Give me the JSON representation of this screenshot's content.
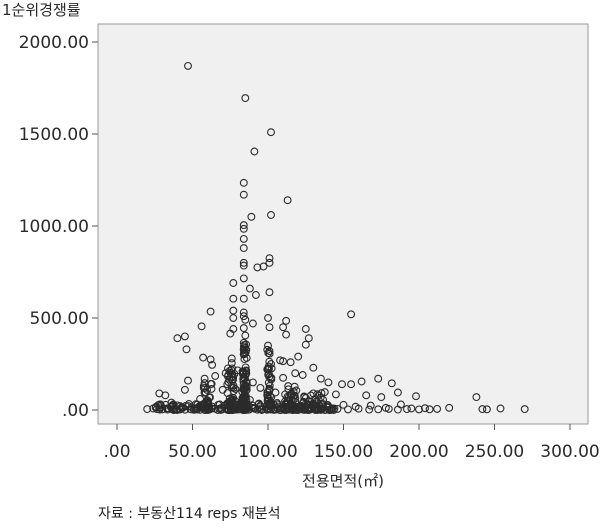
{
  "chart_data": {
    "type": "scatter",
    "ylabel": "1순위경쟁률",
    "xlabel": "전용면적(㎡)",
    "xlim": [
      0,
      300
    ],
    "ylim": [
      0,
      2000
    ],
    "x_ticks": [
      ".00",
      "50.00",
      "100.00",
      "150.00",
      "200.00",
      "250.00",
      "300.00"
    ],
    "x_tick_values": [
      0,
      50,
      100,
      150,
      200,
      250,
      300
    ],
    "y_ticks": [
      ".00",
      "500.00",
      "1000.00",
      "1500.00",
      "2000.00"
    ],
    "y_tick_values": [
      0,
      500,
      1000,
      1500,
      2000
    ],
    "grid": false,
    "plot_background": "#f0f0f0",
    "marker_color": "#2b2b2b",
    "marker": "open-circle",
    "points": [
      [
        47,
        1870
      ],
      [
        85,
        1695
      ],
      [
        102,
        1510
      ],
      [
        91,
        1405
      ],
      [
        113,
        1140
      ],
      [
        84,
        1235
      ],
      [
        84,
        1170
      ],
      [
        89,
        1050
      ],
      [
        102,
        1060
      ],
      [
        84,
        1005
      ],
      [
        84,
        985
      ],
      [
        84,
        930
      ],
      [
        84,
        880
      ],
      [
        84,
        800
      ],
      [
        84,
        785
      ],
      [
        101,
        825
      ],
      [
        101,
        800
      ],
      [
        93,
        775
      ],
      [
        97,
        780
      ],
      [
        84,
        715
      ],
      [
        88,
        660
      ],
      [
        101,
        640
      ],
      [
        92,
        625
      ],
      [
        84,
        605
      ],
      [
        77,
        690
      ],
      [
        62,
        535
      ],
      [
        77,
        605
      ],
      [
        77,
        540
      ],
      [
        84,
        530
      ],
      [
        84,
        510
      ],
      [
        77,
        500
      ],
      [
        85,
        490
      ],
      [
        100,
        500
      ],
      [
        112,
        485
      ],
      [
        90,
        470
      ],
      [
        56,
        455
      ],
      [
        77,
        440
      ],
      [
        84,
        445
      ],
      [
        101,
        450
      ],
      [
        110,
        450
      ],
      [
        125,
        440
      ],
      [
        155,
        520
      ],
      [
        40,
        390
      ],
      [
        45,
        400
      ],
      [
        75,
        415
      ],
      [
        85,
        405
      ],
      [
        112,
        410
      ],
      [
        127,
        390
      ],
      [
        46,
        330
      ],
      [
        84,
        365
      ],
      [
        100,
        350
      ],
      [
        125,
        355
      ],
      [
        57,
        285
      ],
      [
        62,
        275
      ],
      [
        76,
        280
      ],
      [
        84,
        330
      ],
      [
        101,
        320
      ],
      [
        110,
        265
      ],
      [
        115,
        260
      ],
      [
        120,
        290
      ],
      [
        63,
        245
      ],
      [
        76,
        255
      ],
      [
        100,
        220
      ],
      [
        102,
        250
      ],
      [
        108,
        270
      ],
      [
        130,
        230
      ],
      [
        47,
        160
      ],
      [
        58,
        170
      ],
      [
        65,
        185
      ],
      [
        72,
        200
      ],
      [
        80,
        215
      ],
      [
        90,
        150
      ],
      [
        110,
        175
      ],
      [
        118,
        200
      ],
      [
        123,
        190
      ],
      [
        135,
        170
      ],
      [
        140,
        150
      ],
      [
        149,
        140
      ],
      [
        155,
        140
      ],
      [
        162,
        155
      ],
      [
        173,
        170
      ],
      [
        182,
        145
      ],
      [
        28,
        90
      ],
      [
        32,
        80
      ],
      [
        45,
        110
      ],
      [
        70,
        110
      ],
      [
        95,
        120
      ],
      [
        105,
        95
      ],
      [
        130,
        90
      ],
      [
        145,
        85
      ],
      [
        165,
        80
      ],
      [
        175,
        70
      ],
      [
        186,
        95
      ],
      [
        198,
        75
      ],
      [
        36,
        40
      ],
      [
        40,
        25
      ],
      [
        55,
        60
      ],
      [
        60,
        45
      ],
      [
        68,
        30
      ],
      [
        75,
        50
      ],
      [
        82,
        40
      ],
      [
        88,
        55
      ],
      [
        94,
        35
      ],
      [
        100,
        48
      ],
      [
        106,
        38
      ],
      [
        112,
        30
      ],
      [
        118,
        44
      ],
      [
        124,
        26
      ],
      [
        132,
        36
      ],
      [
        140,
        20
      ],
      [
        150,
        28
      ],
      [
        158,
        18
      ],
      [
        168,
        24
      ],
      [
        178,
        12
      ],
      [
        188,
        30
      ],
      [
        195,
        8
      ],
      [
        204,
        10
      ],
      [
        207,
        4
      ],
      [
        212,
        6
      ],
      [
        220,
        12
      ],
      [
        238,
        70
      ],
      [
        242,
        5
      ],
      [
        245,
        4
      ],
      [
        254,
        8
      ],
      [
        270,
        5
      ],
      [
        20,
        5
      ],
      [
        24,
        8
      ],
      [
        30,
        3
      ],
      [
        34,
        10
      ],
      [
        38,
        6
      ],
      [
        43,
        12
      ],
      [
        49,
        4
      ],
      [
        53,
        9
      ],
      [
        57,
        14
      ],
      [
        61,
        3
      ],
      [
        65,
        7
      ],
      [
        69,
        11
      ],
      [
        73,
        5
      ],
      [
        78,
        16
      ],
      [
        83,
        2
      ],
      [
        87,
        13
      ],
      [
        91,
        7
      ],
      [
        96,
        4
      ],
      [
        99,
        18
      ],
      [
        104,
        6
      ],
      [
        108,
        9
      ],
      [
        114,
        3
      ],
      [
        120,
        12
      ],
      [
        127,
        5
      ],
      [
        133,
        8
      ],
      [
        138,
        2
      ],
      [
        146,
        6
      ],
      [
        153,
        3
      ],
      [
        160,
        7
      ],
      [
        167,
        2
      ],
      [
        173,
        4
      ],
      [
        180,
        6
      ],
      [
        186,
        2
      ],
      [
        192,
        5
      ],
      [
        200,
        3
      ]
    ],
    "dense_clusters": [
      {
        "x_center": 60,
        "x_spread": 3,
        "y_max": 150,
        "count": 40
      },
      {
        "x_center": 76,
        "x_spread": 3,
        "y_max": 230,
        "count": 50
      },
      {
        "x_center": 84.5,
        "x_spread": 1.5,
        "y_max": 360,
        "count": 90
      },
      {
        "x_center": 101,
        "x_spread": 1.5,
        "y_max": 340,
        "count": 45
      },
      {
        "x_center": 115,
        "x_spread": 4,
        "y_max": 130,
        "count": 40
      },
      {
        "x_center": 130,
        "x_spread": 8,
        "y_max": 100,
        "count": 40
      },
      {
        "x_center": 85,
        "x_spread": 60,
        "y_max": 35,
        "count": 160
      }
    ]
  },
  "source_note": "자료 : 부동산114 reps 재분석"
}
